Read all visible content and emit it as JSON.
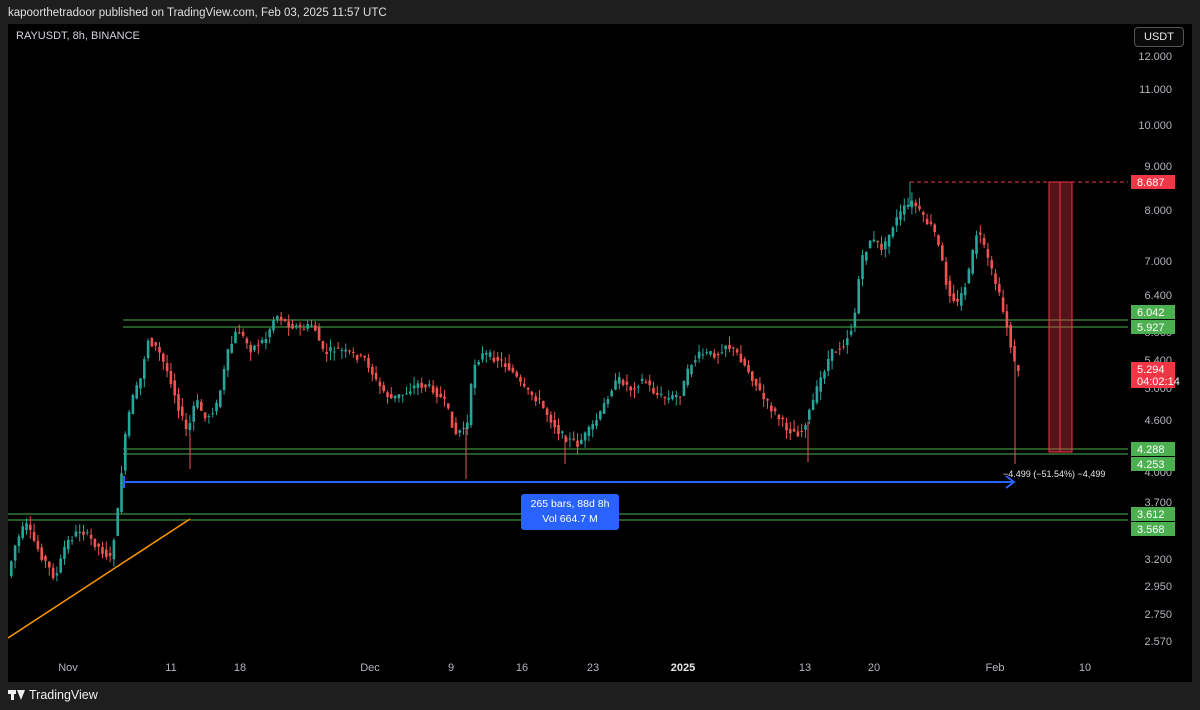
{
  "header": {
    "published_line": "kapoorthetradoor published on TradingView.com, Feb 03, 2025 11:57 UTC"
  },
  "chart": {
    "symbol_label": "RAYUSDT, 8h, BINANCE",
    "currency": "USDT",
    "price_axis_ticks": [
      "12.000",
      "11.000",
      "10.000",
      "9.000",
      "8.000",
      "7.000",
      "6.400",
      "5.800",
      "5.400",
      "5.000",
      "4.600",
      "4.000",
      "3.700",
      "3.200",
      "2.950",
      "2.750",
      "2.570"
    ],
    "time_axis_ticks": [
      {
        "label": "Nov",
        "bold": false
      },
      {
        "label": "11",
        "bold": false
      },
      {
        "label": "18",
        "bold": false
      },
      {
        "label": "Dec",
        "bold": false
      },
      {
        "label": "9",
        "bold": false
      },
      {
        "label": "16",
        "bold": false
      },
      {
        "label": "23",
        "bold": false
      },
      {
        "label": "2025",
        "bold": true
      },
      {
        "label": "13",
        "bold": false
      },
      {
        "label": "20",
        "bold": false
      },
      {
        "label": "Feb",
        "bold": false
      },
      {
        "label": "10",
        "bold": false
      }
    ],
    "price_tags": [
      {
        "name": "high-tag",
        "text": "8.687",
        "color": "#f23645"
      },
      {
        "name": "upper-range-top-tag",
        "text": "6.042",
        "color": "#4caf50"
      },
      {
        "name": "upper-range-bottom-tag",
        "text": "5.927",
        "color": "#4caf50"
      },
      {
        "name": "current-price-tag",
        "text": "5.294",
        "color": "#f23645"
      },
      {
        "name": "countdown-tag",
        "text": "04:02:14",
        "color": "#f23645"
      },
      {
        "name": "support-top-tag",
        "text": "4.288",
        "color": "#4caf50"
      },
      {
        "name": "support-bottom-tag",
        "text": "4.253",
        "color": "#4caf50"
      },
      {
        "name": "lower-support-top-tag",
        "text": "3.612",
        "color": "#4caf50"
      },
      {
        "name": "lower-support-bottom-tag",
        "text": "3.568",
        "color": "#4caf50"
      }
    ],
    "measure_box": {
      "line1": "265 bars, 88d 8h",
      "line2": "Vol 664.7 M"
    },
    "drop_label": "−4.499 (−51.54%) −4,499",
    "colors": {
      "up": "#26a69a",
      "down": "#ef5350",
      "range_line": "#4caf50",
      "measure": "#2962ff",
      "trendline": "#ff9800"
    }
  },
  "footer": {
    "brand": "TradingView"
  }
}
